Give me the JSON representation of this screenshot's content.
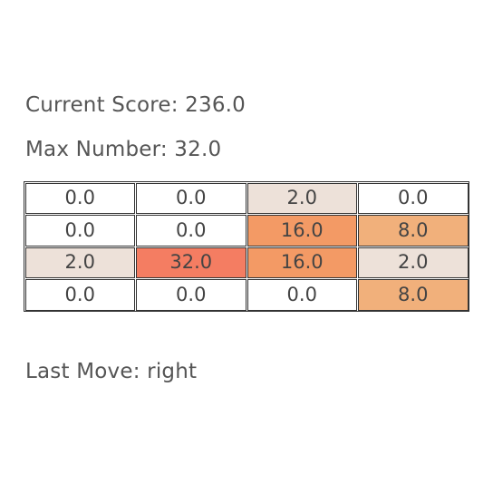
{
  "score": {
    "label": "Current Score:",
    "value": "236.0",
    "text": "Current Score: 236.0"
  },
  "max_number": {
    "label": "Max Number:",
    "value": "32.0",
    "text": "Max Number: 32.0"
  },
  "last_move": {
    "label": "Last Move:",
    "value": "right",
    "text": "Last Move: right"
  },
  "board": {
    "rows": [
      [
        {
          "value": "0.0",
          "color": "#ffffff"
        },
        {
          "value": "0.0",
          "color": "#ffffff"
        },
        {
          "value": "2.0",
          "color": "#ede1d9"
        },
        {
          "value": "0.0",
          "color": "#ffffff"
        }
      ],
      [
        {
          "value": "0.0",
          "color": "#ffffff"
        },
        {
          "value": "0.0",
          "color": "#ffffff"
        },
        {
          "value": "16.0",
          "color": "#f39a65"
        },
        {
          "value": "8.0",
          "color": "#f1b07b"
        }
      ],
      [
        {
          "value": "2.0",
          "color": "#ede1d9"
        },
        {
          "value": "32.0",
          "color": "#f47d62"
        },
        {
          "value": "16.0",
          "color": "#f39a65"
        },
        {
          "value": "2.0",
          "color": "#ede1d9"
        }
      ],
      [
        {
          "value": "0.0",
          "color": "#ffffff"
        },
        {
          "value": "0.0",
          "color": "#ffffff"
        },
        {
          "value": "0.0",
          "color": "#ffffff"
        },
        {
          "value": "8.0",
          "color": "#f1b07b"
        }
      ]
    ]
  }
}
